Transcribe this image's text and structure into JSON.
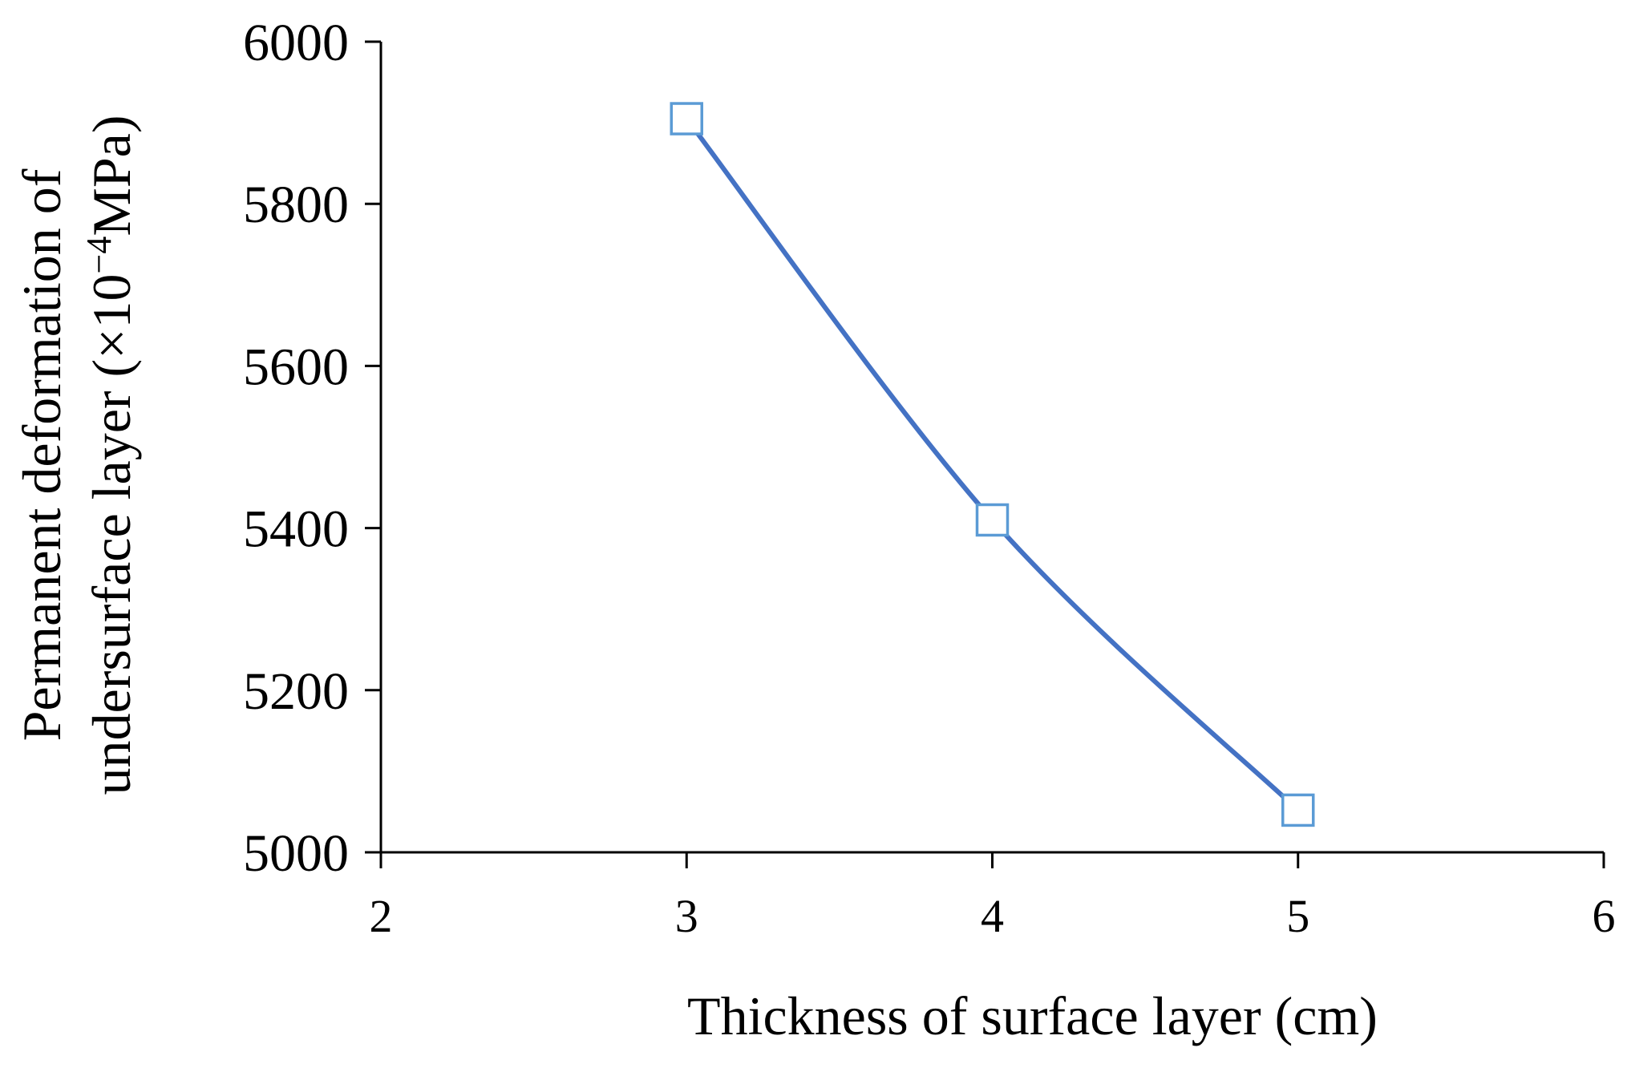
{
  "chart_data": {
    "type": "line",
    "title": "",
    "xlabel": "Thickness of surface layer (cm)",
    "ylabel_line1": "Permanent deformation of",
    "ylabel_line2_prefix": "undersurface layer (×10",
    "ylabel_line2_exponent": "−4",
    "ylabel_line2_suffix": "MPa)",
    "xlim": [
      2,
      6
    ],
    "ylim": [
      5000,
      6000
    ],
    "x_ticks": [
      2,
      3,
      4,
      5,
      6
    ],
    "y_ticks": [
      5000,
      5200,
      5400,
      5600,
      5800,
      6000
    ],
    "grid": false,
    "legend": "none",
    "series": [
      {
        "x": [
          3,
          4,
          5
        ],
        "values": [
          5905,
          5410,
          5052
        ],
        "line_color": "#4472C4",
        "marker": "square-open",
        "marker_color": "#5B9BD5",
        "smooth": true
      }
    ]
  }
}
